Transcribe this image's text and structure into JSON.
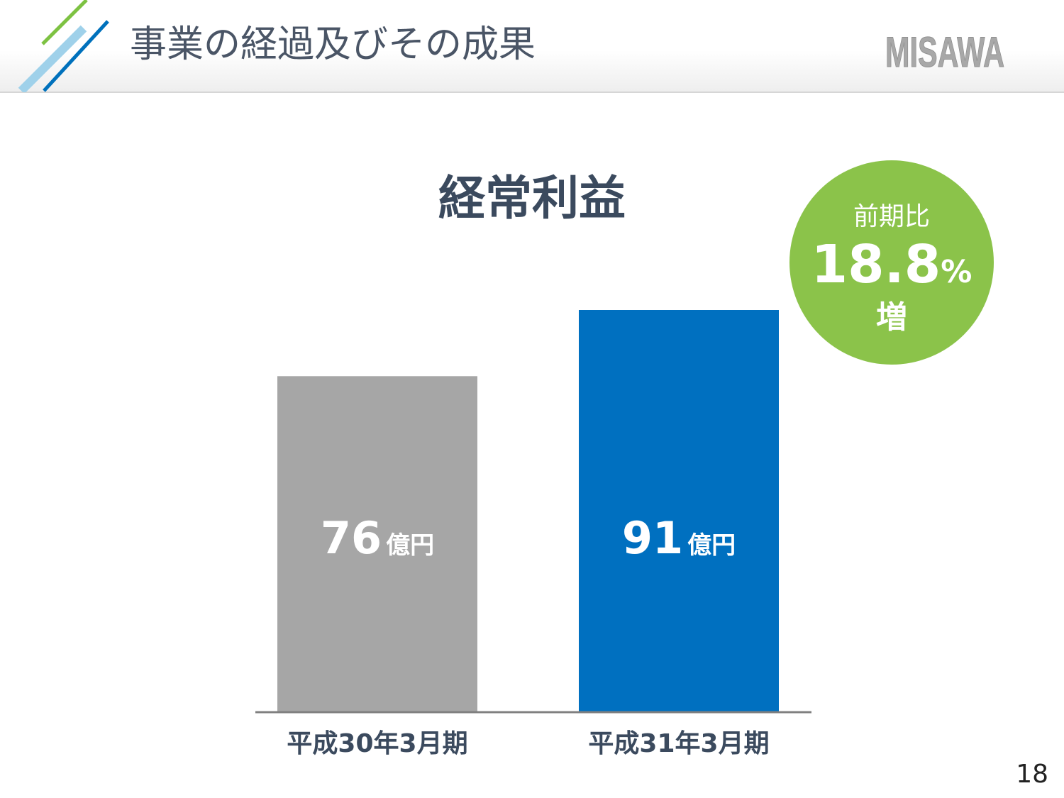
{
  "page": {
    "title": "事業の経過及びその成果",
    "logo_text": "MISAWA",
    "page_number": "18"
  },
  "colors": {
    "stripe_green": "#7dc242",
    "stripe_light_blue": "#9fd1ea",
    "stripe_blue": "#0071bc",
    "bar_prev": "#a6a6a6",
    "bar_curr": "#0070c0",
    "badge": "#8bc34a",
    "title_text": "#3b4a5e"
  },
  "badge": {
    "label_top": "前期比",
    "value": "18.8",
    "unit": "%",
    "label_bottom": "増"
  },
  "chart_data": {
    "type": "bar",
    "title": "経常利益",
    "categories": [
      "平成30年3月期",
      "平成31年3月期"
    ],
    "values": [
      76,
      91
    ],
    "unit": "億円",
    "data_labels": [
      "76",
      "91"
    ],
    "grid": false,
    "legend": "none"
  }
}
